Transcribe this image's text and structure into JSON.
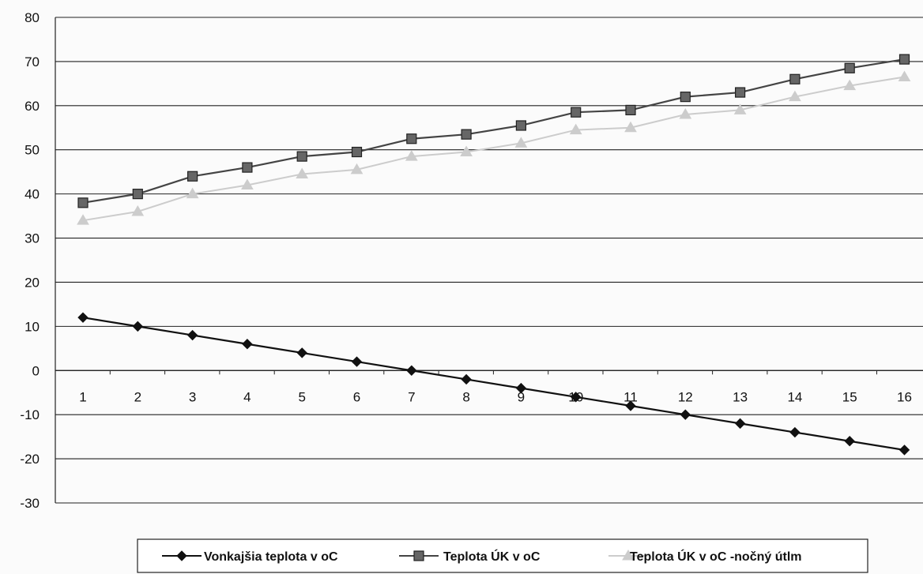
{
  "chart_data": {
    "type": "line",
    "categories": [
      "1",
      "2",
      "3",
      "4",
      "5",
      "6",
      "7",
      "8",
      "9",
      "10",
      "11",
      "12",
      "13",
      "14",
      "15",
      "16"
    ],
    "ylim": [
      -30,
      80
    ],
    "yticks": [
      "80",
      "70",
      "60",
      "50",
      "40",
      "30",
      "20",
      "10",
      "0",
      "-10",
      "-20",
      "-30"
    ],
    "grid": true,
    "legend_position": "bottom",
    "title": "",
    "xlabel": "",
    "ylabel": "",
    "series": [
      {
        "name": "Vonkajšia teplota v oC",
        "marker": "diamond",
        "color": "#111111",
        "values": [
          12,
          10,
          8,
          6,
          4,
          2,
          0,
          -2,
          -4,
          -6,
          -8,
          -10,
          -12,
          -14,
          -16,
          -18
        ]
      },
      {
        "name": "Teplota ÚK v oC",
        "marker": "square",
        "color": "#444444",
        "values": [
          38,
          40,
          44,
          46,
          48.5,
          49.5,
          52.5,
          53.5,
          55.5,
          58.5,
          59,
          62,
          63,
          66,
          68.5,
          70.5
        ]
      },
      {
        "name": "Teplota ÚK v oC -nočný útlm",
        "marker": "triangle",
        "color": "#cccccc",
        "values": [
          34,
          36,
          40,
          42,
          44.5,
          45.5,
          48.5,
          49.5,
          51.5,
          54.5,
          55,
          58,
          59,
          62,
          64.5,
          66.5
        ]
      }
    ]
  }
}
